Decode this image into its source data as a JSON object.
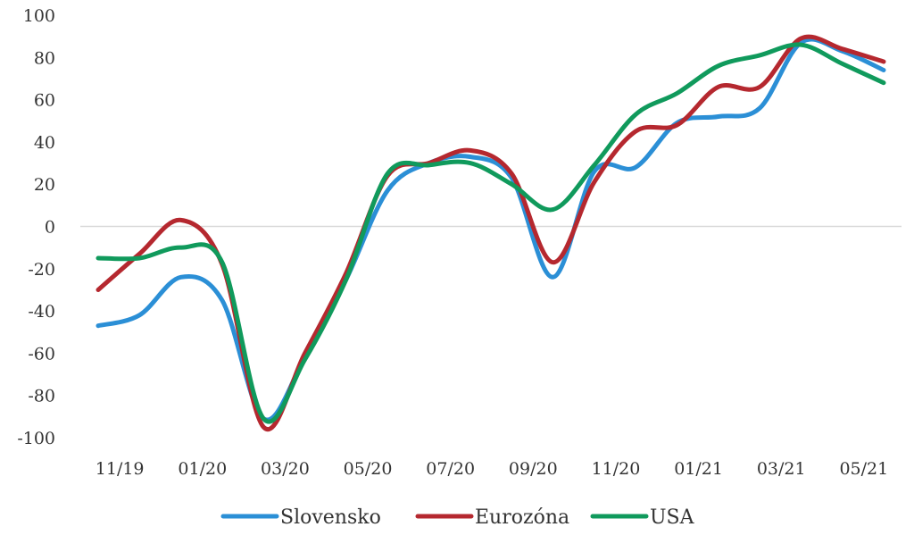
{
  "chart_data": {
    "type": "line",
    "title": "",
    "xlabel": "",
    "ylabel": "",
    "ylim": [
      -100,
      100
    ],
    "yticks": [
      "100",
      "80",
      "60",
      "40",
      "20",
      "0",
      "-20",
      "-40",
      "-60",
      "-80",
      "-100"
    ],
    "x_tick_labels": [
      "11/19",
      "01/20",
      "03/20",
      "05/20",
      "07/20",
      "09/20",
      "11/20",
      "01/21",
      "03/21",
      "05/21"
    ],
    "x": [
      "11/19",
      "12/19",
      "01/20",
      "02/20",
      "03/20",
      "04/20",
      "05/20",
      "06/20",
      "07/20",
      "08/20",
      "09/20",
      "10/20",
      "11/20",
      "12/20",
      "01/21",
      "02/21",
      "03/21",
      "04/21",
      "05/21",
      "06/21"
    ],
    "grid": false,
    "zero_line": true,
    "legend": "bottom",
    "series": [
      {
        "name": "Slovensko",
        "color": "#2b8fd6",
        "values": [
          -47,
          -42,
          -24,
          -35,
          -91,
          -62,
          -25,
          17,
          30,
          33,
          23,
          -24,
          26,
          28,
          49,
          52,
          56,
          87,
          83,
          74
        ]
      },
      {
        "name": "Eurozóna",
        "color": "#b5282f",
        "values": [
          -30,
          -13,
          3,
          -18,
          -95,
          -60,
          -22,
          24,
          30,
          36,
          25,
          -17,
          21,
          45,
          48,
          66,
          66,
          89,
          84,
          78
        ]
      },
      {
        "name": "USA",
        "color": "#109a5c",
        "values": [
          -15,
          -15,
          -10,
          -17,
          -91,
          -63,
          -25,
          25,
          29,
          30,
          20,
          8,
          29,
          53,
          63,
          76,
          81,
          86,
          77,
          68
        ]
      }
    ]
  }
}
